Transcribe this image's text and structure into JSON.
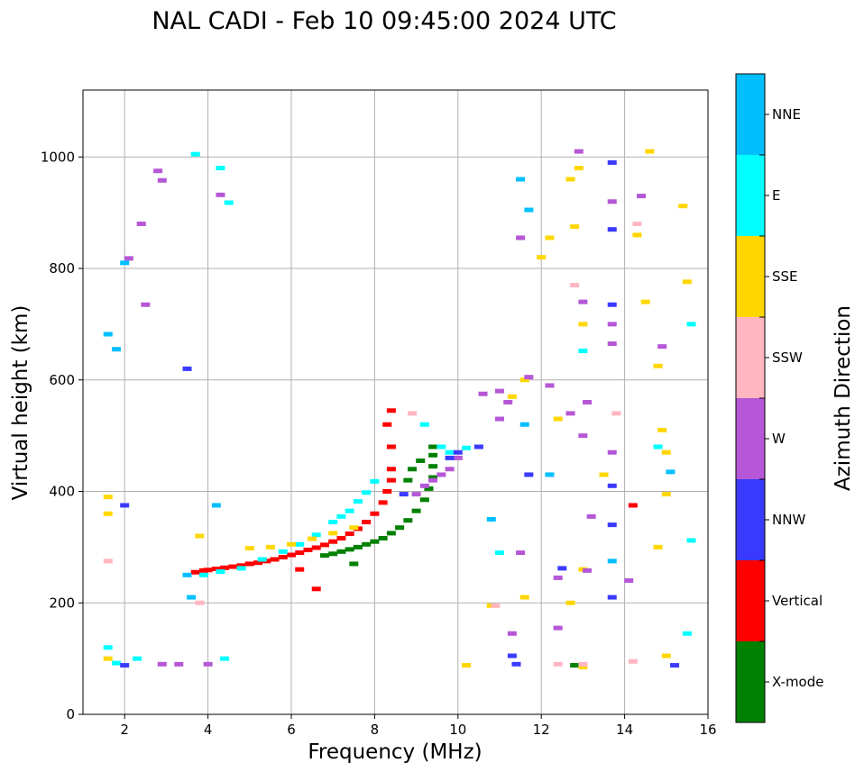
{
  "chart_data": {
    "type": "scatter",
    "title": "NAL CADI - Feb 10 09:45:00 2024 UTC",
    "xlabel": "Frequency (MHz)",
    "ylabel": "Virtual height (km)",
    "xlim": [
      1,
      16
    ],
    "ylim": [
      0,
      1120
    ],
    "xticks": [
      2,
      4,
      6,
      8,
      10,
      12,
      14,
      16
    ],
    "yticks": [
      0,
      200,
      400,
      600,
      800,
      1000
    ],
    "grid": true,
    "colorbar": {
      "label": "Azimuth Direction",
      "categories": [
        {
          "name": "X-mode",
          "color": "#008000"
        },
        {
          "name": "Vertical",
          "color": "#ff0000"
        },
        {
          "name": "NNW",
          "color": "#3a3aff"
        },
        {
          "name": "W",
          "color": "#b557d6"
        },
        {
          "name": "SSW",
          "color": "#ffb6c1"
        },
        {
          "name": "SSE",
          "color": "#ffd700"
        },
        {
          "name": "E",
          "color": "#00ffff"
        },
        {
          "name": "NNE",
          "color": "#00bfff"
        }
      ]
    },
    "series": [
      {
        "name": "Vertical",
        "points": [
          [
            3.7,
            255
          ],
          [
            3.9,
            258
          ],
          [
            4.0,
            259
          ],
          [
            4.2,
            261
          ],
          [
            4.4,
            263
          ],
          [
            4.6,
            265
          ],
          [
            4.8,
            267
          ],
          [
            5.0,
            270
          ],
          [
            5.2,
            272
          ],
          [
            5.4,
            275
          ],
          [
            5.6,
            278
          ],
          [
            5.8,
            282
          ],
          [
            6.0,
            286
          ],
          [
            6.2,
            290
          ],
          [
            6.4,
            295
          ],
          [
            6.6,
            299
          ],
          [
            6.8,
            304
          ],
          [
            7.0,
            310
          ],
          [
            7.2,
            316
          ],
          [
            7.4,
            324
          ],
          [
            7.6,
            333
          ],
          [
            7.8,
            345
          ],
          [
            8.0,
            360
          ],
          [
            8.2,
            380
          ],
          [
            8.3,
            400
          ],
          [
            8.4,
            420
          ],
          [
            8.4,
            440
          ],
          [
            8.4,
            480
          ],
          [
            8.4,
            545
          ],
          [
            8.3,
            520
          ],
          [
            6.6,
            225
          ],
          [
            6.2,
            260
          ],
          [
            14.2,
            375
          ]
        ]
      },
      {
        "name": "X-mode",
        "points": [
          [
            6.8,
            285
          ],
          [
            7.0,
            288
          ],
          [
            7.2,
            292
          ],
          [
            7.4,
            296
          ],
          [
            7.6,
            300
          ],
          [
            7.8,
            305
          ],
          [
            8.0,
            310
          ],
          [
            8.2,
            316
          ],
          [
            8.4,
            325
          ],
          [
            8.6,
            335
          ],
          [
            8.8,
            348
          ],
          [
            9.0,
            365
          ],
          [
            9.2,
            385
          ],
          [
            9.3,
            405
          ],
          [
            9.4,
            425
          ],
          [
            9.4,
            445
          ],
          [
            9.4,
            465
          ],
          [
            9.4,
            480
          ],
          [
            9.1,
            455
          ],
          [
            8.9,
            440
          ],
          [
            8.8,
            420
          ],
          [
            12.8,
            88
          ],
          [
            7.5,
            270
          ]
        ]
      },
      {
        "name": "E",
        "points": [
          [
            3.9,
            250
          ],
          [
            4.3,
            256
          ],
          [
            4.8,
            262
          ],
          [
            5.3,
            278
          ],
          [
            5.8,
            292
          ],
          [
            6.2,
            305
          ],
          [
            6.6,
            322
          ],
          [
            7.0,
            345
          ],
          [
            7.2,
            355
          ],
          [
            7.4,
            365
          ],
          [
            7.6,
            382
          ],
          [
            7.8,
            398
          ],
          [
            8.0,
            418
          ],
          [
            9.2,
            520
          ],
          [
            9.6,
            480
          ],
          [
            9.8,
            470
          ],
          [
            10.2,
            478
          ],
          [
            1.6,
            120
          ],
          [
            1.8,
            92
          ],
          [
            2.3,
            100
          ],
          [
            4.4,
            100
          ],
          [
            4.3,
            980
          ],
          [
            4.5,
            918
          ],
          [
            3.7,
            1005
          ],
          [
            13.0,
            652
          ],
          [
            14.8,
            480
          ],
          [
            15.6,
            700
          ],
          [
            15.5,
            145
          ],
          [
            15.6,
            312
          ],
          [
            11.0,
            290
          ]
        ]
      },
      {
        "name": "SSE",
        "points": [
          [
            5.0,
            298
          ],
          [
            5.5,
            300
          ],
          [
            6.0,
            305
          ],
          [
            6.5,
            315
          ],
          [
            7.0,
            325
          ],
          [
            7.5,
            335
          ],
          [
            3.8,
            320
          ],
          [
            1.6,
            390
          ],
          [
            1.6,
            360
          ],
          [
            1.6,
            100
          ],
          [
            12.2,
            855
          ],
          [
            12.4,
            530
          ],
          [
            12.8,
            875
          ],
          [
            12.7,
            960
          ],
          [
            12.9,
            980
          ],
          [
            13.0,
            700
          ],
          [
            13.0,
            260
          ],
          [
            13.5,
            430
          ],
          [
            14.3,
            860
          ],
          [
            14.5,
            740
          ],
          [
            14.8,
            625
          ],
          [
            14.9,
            510
          ],
          [
            15.0,
            470
          ],
          [
            15.0,
            395
          ],
          [
            14.8,
            300
          ],
          [
            15.4,
            912
          ],
          [
            15.5,
            776
          ],
          [
            11.6,
            600
          ],
          [
            11.3,
            570
          ],
          [
            11.6,
            210
          ],
          [
            12.7,
            200
          ],
          [
            13.0,
            85
          ],
          [
            10.2,
            88
          ],
          [
            10.8,
            195
          ],
          [
            12.0,
            820
          ],
          [
            14.6,
            1010
          ],
          [
            15.0,
            105
          ]
        ]
      },
      {
        "name": "W",
        "points": [
          [
            9.0,
            395
          ],
          [
            9.2,
            410
          ],
          [
            9.4,
            420
          ],
          [
            9.6,
            430
          ],
          [
            9.8,
            440
          ],
          [
            10.0,
            460
          ],
          [
            10.6,
            575
          ],
          [
            11.0,
            580
          ],
          [
            11.2,
            560
          ],
          [
            11.7,
            605
          ],
          [
            12.2,
            590
          ],
          [
            12.7,
            540
          ],
          [
            13.0,
            500
          ],
          [
            13.1,
            560
          ],
          [
            13.0,
            740
          ],
          [
            13.2,
            355
          ],
          [
            13.1,
            258
          ],
          [
            13.7,
            470
          ],
          [
            13.7,
            700
          ],
          [
            13.7,
            920
          ],
          [
            13.7,
            665
          ],
          [
            14.1,
            240
          ],
          [
            14.4,
            930
          ],
          [
            14.9,
            660
          ],
          [
            12.4,
            155
          ],
          [
            11.3,
            145
          ],
          [
            2.9,
            90
          ],
          [
            3.3,
            90
          ],
          [
            4.0,
            90
          ],
          [
            2.8,
            975
          ],
          [
            2.9,
            958
          ],
          [
            2.4,
            880
          ],
          [
            2.1,
            818
          ],
          [
            2.5,
            735
          ],
          [
            4.3,
            932
          ],
          [
            11.5,
            855
          ],
          [
            12.9,
            1010
          ],
          [
            11.0,
            530
          ],
          [
            11.5,
            290
          ],
          [
            12.4,
            245
          ]
        ]
      },
      {
        "name": "SSW",
        "points": [
          [
            8.9,
            540
          ],
          [
            10.9,
            195
          ],
          [
            3.8,
            200
          ],
          [
            1.6,
            275
          ],
          [
            12.8,
            770
          ],
          [
            13.8,
            540
          ],
          [
            14.3,
            880
          ],
          [
            14.2,
            95
          ],
          [
            12.4,
            90
          ],
          [
            13.0,
            90
          ]
        ]
      },
      {
        "name": "NNW",
        "points": [
          [
            10.0,
            470
          ],
          [
            9.8,
            460
          ],
          [
            8.7,
            395
          ],
          [
            11.3,
            105
          ],
          [
            11.4,
            90
          ],
          [
            12.5,
            262
          ],
          [
            13.7,
            210
          ],
          [
            13.7,
            410
          ],
          [
            13.7,
            735
          ],
          [
            13.7,
            870
          ],
          [
            15.2,
            88
          ],
          [
            13.7,
            990
          ],
          [
            11.7,
            430
          ],
          [
            2.0,
            375
          ],
          [
            2.0,
            88
          ],
          [
            3.5,
            620
          ],
          [
            10.5,
            480
          ],
          [
            13.7,
            340
          ]
        ]
      },
      {
        "name": "NNE",
        "points": [
          [
            4.2,
            375
          ],
          [
            3.6,
            210
          ],
          [
            3.5,
            250
          ],
          [
            1.8,
            655
          ],
          [
            1.6,
            682
          ],
          [
            2.0,
            810
          ],
          [
            11.5,
            960
          ],
          [
            11.7,
            905
          ],
          [
            10.8,
            350
          ],
          [
            12.2,
            430
          ],
          [
            13.7,
            275
          ],
          [
            15.1,
            435
          ],
          [
            11.6,
            520
          ]
        ]
      }
    ]
  }
}
